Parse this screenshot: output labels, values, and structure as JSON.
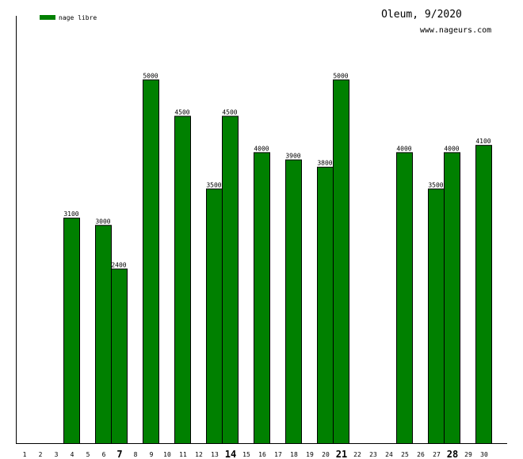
{
  "chart_data": {
    "type": "bar",
    "title": "Oleum, 9/2020",
    "subtitle": "www.nageurs.com",
    "legend": {
      "label": "nage libre",
      "color": "#008000",
      "placement": "top-left"
    },
    "x": [
      1,
      2,
      3,
      4,
      5,
      6,
      7,
      8,
      9,
      10,
      11,
      12,
      13,
      14,
      15,
      16,
      17,
      18,
      19,
      20,
      21,
      22,
      23,
      24,
      25,
      26,
      27,
      28,
      29,
      30
    ],
    "x_tick_labels": [
      "1",
      "2",
      "3",
      "4",
      "5",
      "6",
      "7",
      "8",
      "9",
      "10",
      "11",
      "12",
      "13",
      "14",
      "15",
      "16",
      "17",
      "18",
      "19",
      "20",
      "21",
      "22",
      "23",
      "24",
      "25",
      "26",
      "27",
      "28",
      "29",
      "30"
    ],
    "bold_ticks": [
      7,
      14,
      21,
      28
    ],
    "series": [
      {
        "name": "nage libre",
        "color": "#008000",
        "values": [
          null,
          null,
          null,
          3100,
          null,
          3000,
          2400,
          null,
          5000,
          null,
          4500,
          null,
          3500,
          4500,
          null,
          4000,
          null,
          3900,
          null,
          3800,
          5000,
          null,
          null,
          null,
          4000,
          null,
          3500,
          4000,
          null,
          4100
        ]
      }
    ],
    "ylim": [
      0,
      5500
    ],
    "grid": false
  }
}
